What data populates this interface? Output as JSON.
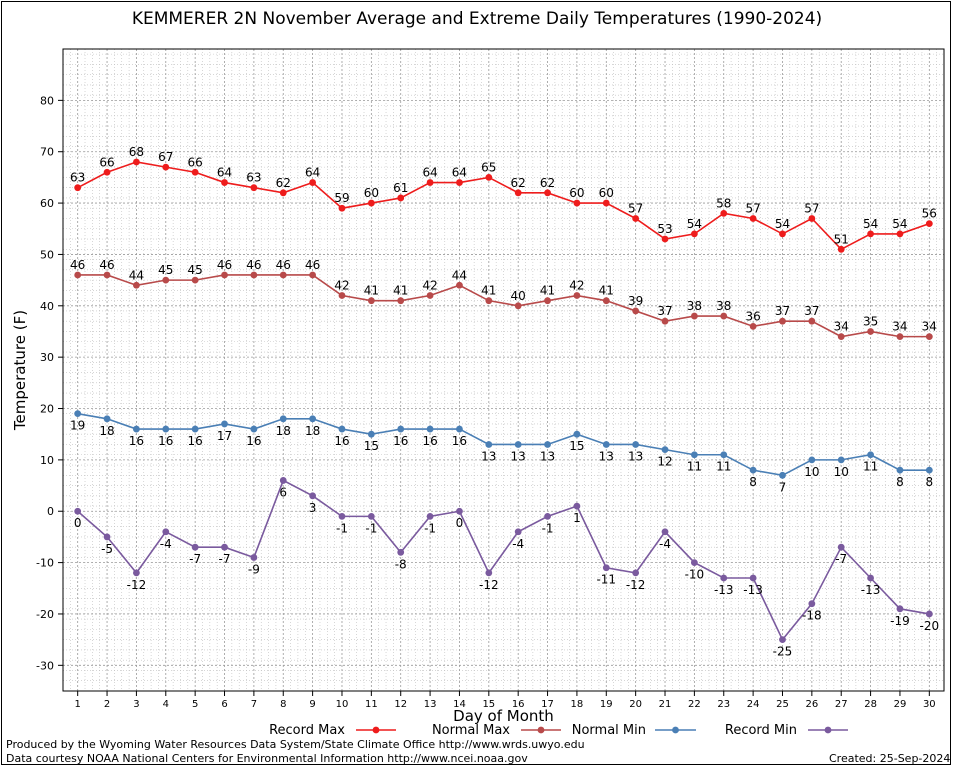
{
  "chart_data": {
    "type": "line",
    "title": "KEMMERER 2N November Average and Extreme Daily Temperatures (1990-2024)",
    "xlabel": "Day of Month",
    "ylabel": "Temperature (F)",
    "x": [
      1,
      2,
      3,
      4,
      5,
      6,
      7,
      8,
      9,
      10,
      11,
      12,
      13,
      14,
      15,
      16,
      17,
      18,
      19,
      20,
      21,
      22,
      23,
      24,
      25,
      26,
      27,
      28,
      29,
      30
    ],
    "ylim": [
      -35,
      90
    ],
    "yticks": [
      -30,
      -20,
      -10,
      0,
      10,
      20,
      30,
      40,
      50,
      60,
      70,
      80
    ],
    "grid": true,
    "legend_position": "bottom",
    "series": [
      {
        "name": "Record Max",
        "color": "#ee1c1c",
        "label_side": "above",
        "values": [
          63,
          66,
          68,
          67,
          66,
          64,
          63,
          62,
          64,
          59,
          60,
          61,
          64,
          64,
          65,
          62,
          62,
          60,
          60,
          57,
          53,
          54,
          58,
          57,
          54,
          57,
          51,
          54,
          54,
          56
        ]
      },
      {
        "name": "Normal Max",
        "color": "#b84a4a",
        "label_side": "above",
        "values": [
          46,
          46,
          44,
          45,
          45,
          46,
          46,
          46,
          46,
          42,
          41,
          41,
          42,
          44,
          41,
          40,
          41,
          42,
          41,
          39,
          37,
          38,
          38,
          36,
          37,
          37,
          34,
          35,
          34,
          34
        ]
      },
      {
        "name": "Normal Min",
        "color": "#4a7fb5",
        "label_side": "below",
        "values": [
          19,
          18,
          16,
          16,
          16,
          17,
          16,
          18,
          18,
          16,
          15,
          16,
          16,
          16,
          13,
          13,
          13,
          15,
          13,
          13,
          12,
          11,
          11,
          8,
          7,
          10,
          10,
          11,
          8,
          8
        ]
      },
      {
        "name": "Record Min",
        "color": "#7a5a9e",
        "label_side": "below",
        "values": [
          0,
          -5,
          -12,
          -4,
          -7,
          -7,
          -9,
          6,
          3,
          -1,
          -1,
          -8,
          -1,
          0,
          -12,
          -4,
          -1,
          1,
          -11,
          -12,
          -4,
          -10,
          -13,
          -13,
          -25,
          -18,
          -7,
          -13,
          -19,
          -20
        ]
      }
    ]
  },
  "footer": {
    "produced_by": "Produced by the Wyoming Water Resources Data System/State Climate Office http://www.wrds.uwyo.edu",
    "data_courtesy": "Data courtesy NOAA National Centers for Environmental Information http://www.ncei.noaa.gov",
    "created": "Created:  25-Sep-2024"
  }
}
